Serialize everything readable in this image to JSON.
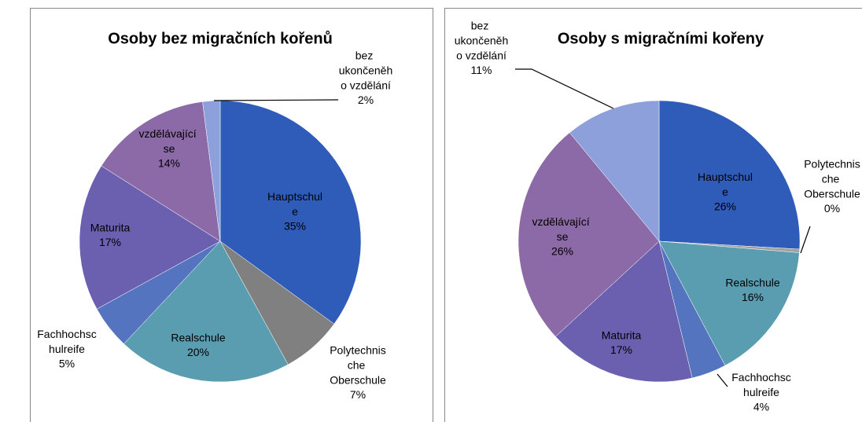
{
  "chart_data": [
    {
      "type": "pie",
      "title": "Osoby bez migračních kořenů",
      "categories": [
        "Hauptschule",
        "Polytechnische Oberschule",
        "Realschule",
        "Fachhochschulreife",
        "Maturita",
        "vzdělávající se",
        "bez ukončeněho vzdělání"
      ],
      "values": [
        35,
        7,
        20,
        5,
        17,
        14,
        2
      ],
      "value_labels": [
        "35%",
        "7%",
        "20%",
        "5%",
        "17%",
        "14%",
        "2%"
      ],
      "colors": [
        "#2e5cb8",
        "#808080",
        "#5b9db0",
        "#5574c0",
        "#6b5fb0",
        "#8c6aa8",
        "#8ea0dc"
      ]
    },
    {
      "type": "pie",
      "title": "Osoby s migračními kořeny",
      "categories": [
        "Hauptschule",
        "Polytechnische Oberschule",
        "Realschule",
        "Fachhochschulreife",
        "Maturita",
        "vzdělávající se",
        "bez ukončeněho vzdělání"
      ],
      "values": [
        26,
        0.4,
        16,
        4,
        17,
        26,
        11
      ],
      "value_labels": [
        "26%",
        "0%",
        "16%",
        "4%",
        "17%",
        "26%",
        "11%"
      ],
      "colors": [
        "#2e5cb8",
        "#a0a0a0",
        "#5b9db0",
        "#5574c0",
        "#6b5fb0",
        "#8c6aa8",
        "#8ea0dc"
      ]
    }
  ]
}
